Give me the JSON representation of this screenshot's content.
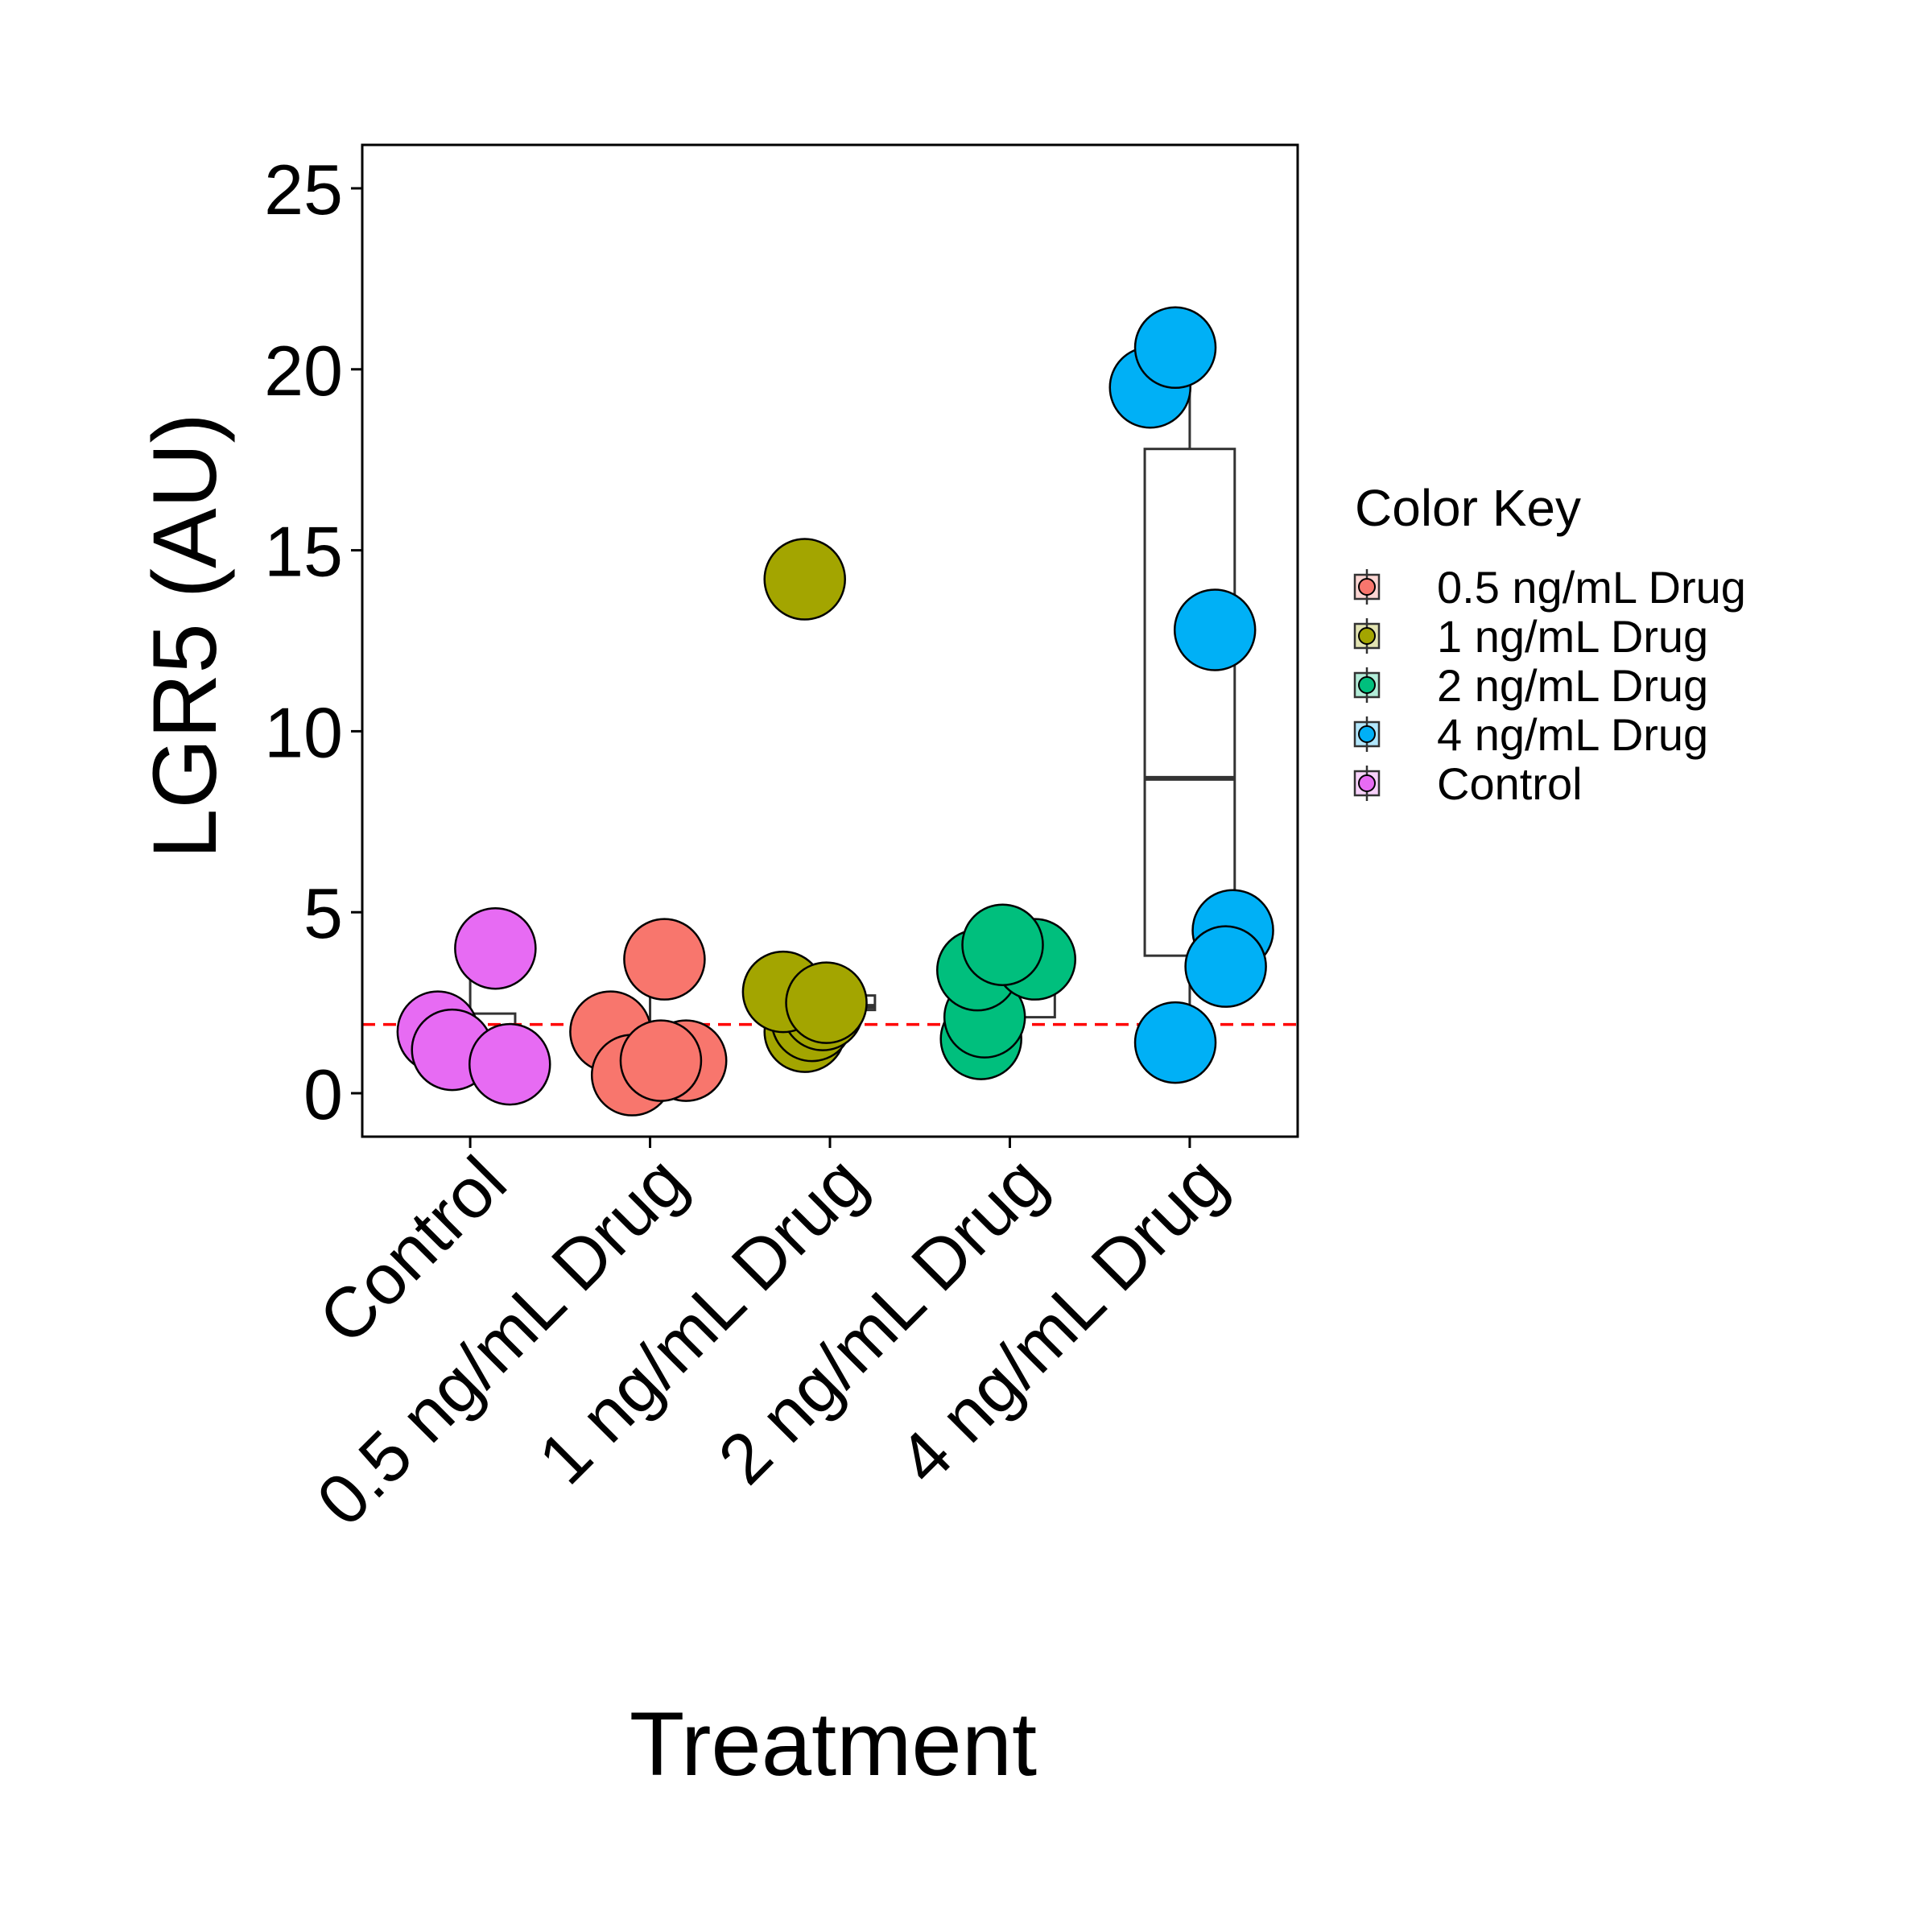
{
  "chart_data": {
    "type": "box+jitter",
    "xlabel": "Treatment",
    "ylabel": "LGR5 (AU)",
    "ylim": [
      -1.2,
      26.2
    ],
    "yticks": [
      0,
      5,
      10,
      15,
      20,
      25
    ],
    "grid": false,
    "reference_line": {
      "y": 1.9,
      "color": "#ff0000",
      "style": "dashed"
    },
    "categories": [
      "Control",
      "0.5 ng/mL Drug",
      "1 ng/mL Drug",
      "2 ng/mL Drug",
      "4 ng/mL Drug"
    ],
    "boxes": [
      {
        "category": "Control",
        "q1": 1.0,
        "median": 1.6,
        "q3": 2.2,
        "whisker_low": 0.8,
        "whisker_high": 4.0
      },
      {
        "category": "0.5 ng/mL Drug",
        "q1": 0.8,
        "median": 0.9,
        "q3": 1.7,
        "whisker_low": 0.4,
        "whisker_high": 3.7
      },
      {
        "category": "1 ng/mL Drug",
        "q1": 2.3,
        "median": 2.4,
        "q3": 2.7,
        "whisker_low": 1.6,
        "whisker_high": 2.8
      },
      {
        "category": "2 ng/mL Drug",
        "q1": 2.1,
        "median": 3.3,
        "q3": 3.9,
        "whisker_low": 1.5,
        "whisker_high": 4.1
      },
      {
        "category": "4 ng/mL Drug",
        "q1": 3.8,
        "median": 8.7,
        "q3": 17.8,
        "whisker_low": 1.4,
        "whisker_high": 20.5
      }
    ],
    "points": [
      {
        "category": "Control",
        "values": [
          1.7,
          1.2,
          0.8,
          4.0
        ],
        "jitter": [
          -0.18,
          -0.1,
          0.22,
          0.14
        ]
      },
      {
        "category": "0.5 ng/mL Drug",
        "values": [
          1.7,
          0.5,
          0.9,
          0.9,
          3.7
        ],
        "jitter": [
          -0.22,
          -0.1,
          0.2,
          0.06,
          0.08
        ]
      },
      {
        "category": "1 ng/mL Drug",
        "values": [
          14.2,
          1.7,
          2.0,
          2.3,
          2.8,
          2.5
        ],
        "jitter": [
          -0.14,
          -0.14,
          -0.1,
          -0.04,
          -0.26,
          -0.02
        ]
      },
      {
        "category": "2 ng/mL Drug",
        "values": [
          1.5,
          2.1,
          3.4,
          3.7,
          4.1
        ],
        "jitter": [
          -0.16,
          -0.14,
          -0.18,
          0.14,
          -0.04
        ]
      },
      {
        "category": "4 ng/mL Drug",
        "values": [
          19.5,
          20.6,
          12.8,
          4.5,
          3.5,
          1.4
        ],
        "jitter": [
          -0.22,
          -0.08,
          0.14,
          0.24,
          0.2,
          -0.08
        ]
      }
    ],
    "colors": {
      "Control": "#e76bf3",
      "0.5 ng/mL Drug": "#f8766d",
      "1 ng/mL Drug": "#a3a500",
      "2 ng/mL Drug": "#00bf7d",
      "4 ng/mL Drug": "#00b0f6"
    },
    "legend": {
      "title": "Color Key",
      "placement": "right",
      "entries": [
        "0.5 ng/mL Drug",
        "1 ng/mL Drug",
        "2 ng/mL Drug",
        "4 ng/mL Drug",
        "Control"
      ]
    }
  }
}
